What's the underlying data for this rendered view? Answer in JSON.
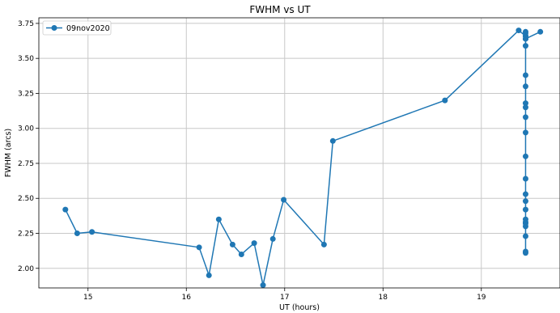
{
  "chart_data": {
    "type": "line",
    "title": "FWHM vs UT",
    "xlabel": "UT (hours)",
    "ylabel": "FWHM (arcs)",
    "xlim": [
      14.5,
      19.8
    ],
    "ylim": [
      1.86,
      3.79
    ],
    "xticks": [
      15,
      16,
      17,
      18,
      19
    ],
    "xtick_labels": [
      "15",
      "16",
      "17",
      "18",
      "19"
    ],
    "yticks": [
      2.0,
      2.25,
      2.5,
      2.75,
      3.0,
      3.25,
      3.5,
      3.75
    ],
    "ytick_labels": [
      "2.00",
      "2.25",
      "2.50",
      "2.75",
      "3.00",
      "3.25",
      "3.50",
      "3.75"
    ],
    "grid": true,
    "legend_position": "top-left",
    "series": [
      {
        "name": "09nov2020",
        "color": "#1f77b4",
        "marker": "circle",
        "x": [
          14.77,
          14.89,
          15.04,
          16.13,
          16.23,
          16.33,
          16.47,
          16.56,
          16.69,
          16.78,
          16.88,
          16.99,
          17.4,
          17.49,
          18.63,
          19.38,
          19.45,
          19.45,
          19.45,
          19.45,
          19.45,
          19.45,
          19.45,
          19.45,
          19.45,
          19.45,
          19.45,
          19.45,
          19.45,
          19.45,
          19.45,
          19.45,
          19.45,
          19.45,
          19.45,
          19.45,
          19.45,
          19.45,
          19.45,
          19.45,
          19.45,
          19.6
        ],
        "y": [
          2.42,
          2.25,
          2.26,
          2.15,
          1.95,
          2.35,
          2.17,
          2.1,
          2.18,
          1.88,
          2.21,
          2.49,
          2.17,
          2.91,
          3.2,
          3.7,
          3.66,
          3.68,
          3.64,
          3.69,
          3.66,
          3.59,
          3.38,
          3.3,
          3.18,
          3.15,
          3.08,
          2.97,
          2.8,
          2.64,
          2.53,
          2.48,
          2.42,
          2.35,
          2.33,
          2.3,
          2.32,
          2.23,
          2.12,
          2.11,
          3.64,
          3.69
        ]
      }
    ]
  }
}
